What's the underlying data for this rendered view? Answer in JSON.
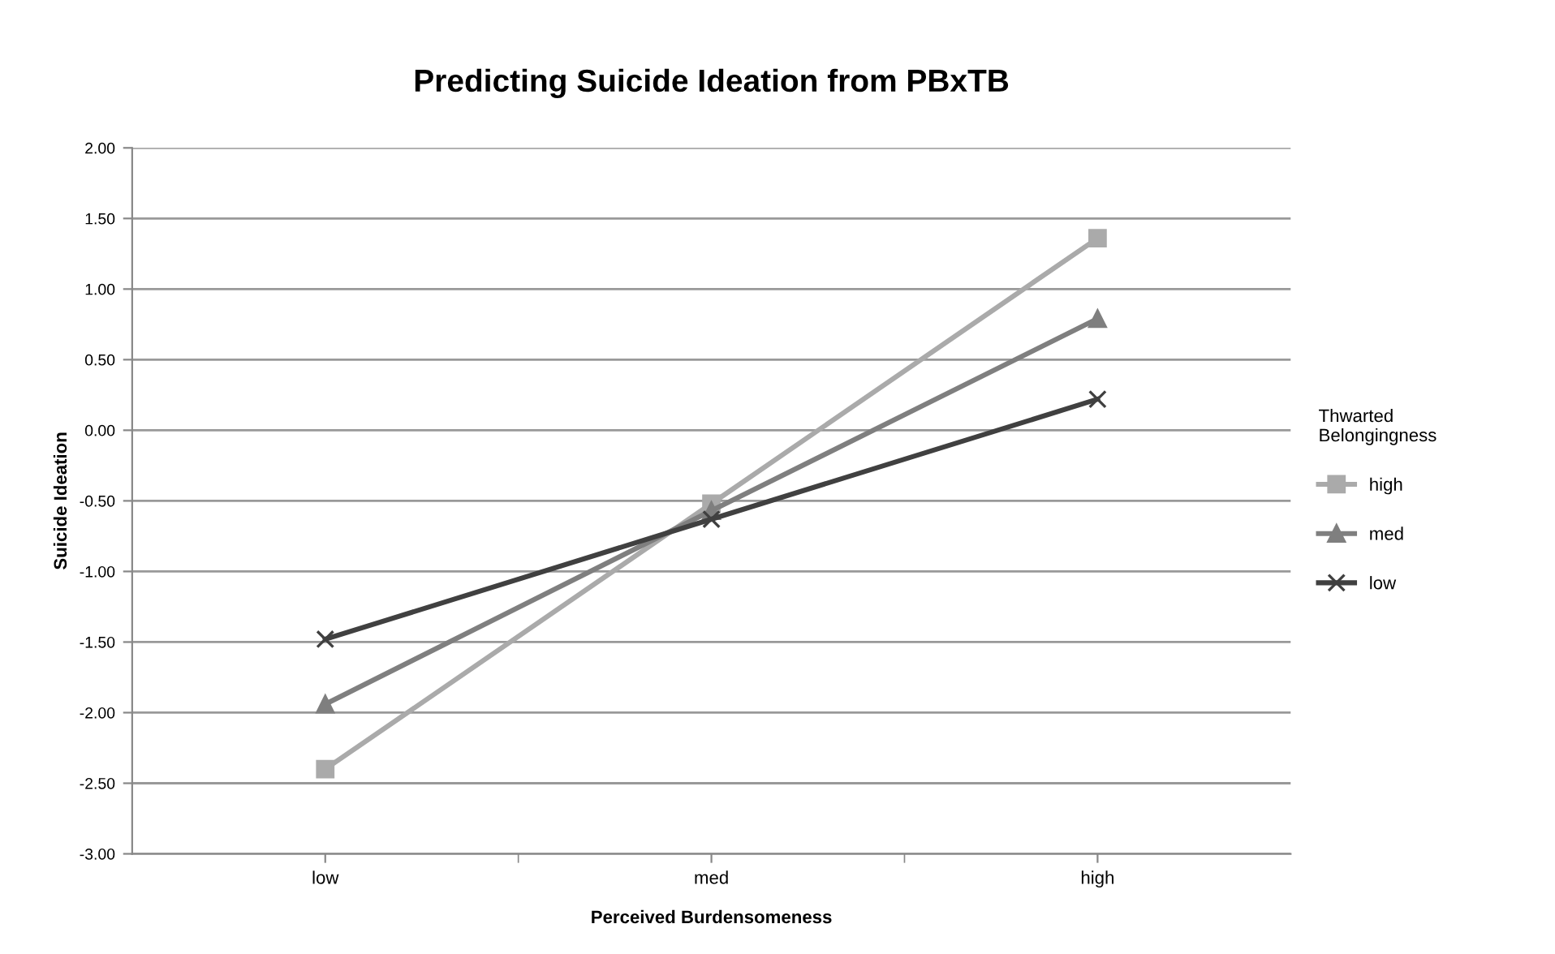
{
  "chart_data": {
    "type": "line",
    "title": "Predicting Suicide Ideation from PBxTB",
    "xlabel": "Perceived Burdensomeness",
    "ylabel": "Suicide Ideation",
    "legend_title": "Thwarted\nBelongingness",
    "categories": [
      "low",
      "med",
      "high"
    ],
    "series": [
      {
        "name": "high",
        "color": "#aaaaaa",
        "marker": "square",
        "values": [
          -2.4,
          -0.52,
          1.36
        ]
      },
      {
        "name": "med",
        "color": "#7f7f7f",
        "marker": "triangle",
        "values": [
          -1.94,
          -0.57,
          0.79
        ]
      },
      {
        "name": "low",
        "color": "#404040",
        "marker": "cross",
        "values": [
          -1.48,
          -0.63,
          0.22
        ]
      }
    ],
    "ylim": [
      -3,
      2
    ],
    "yticks": [
      {
        "value": -3,
        "label": "-3.00"
      },
      {
        "value": -2.5,
        "label": "-2.50"
      },
      {
        "value": -2,
        "label": "-2.00"
      },
      {
        "value": -1.5,
        "label": "-1.50"
      },
      {
        "value": -1,
        "label": "-1.00"
      },
      {
        "value": -0.5,
        "label": "-0.50"
      },
      {
        "value": 0,
        "label": "0.00"
      },
      {
        "value": 0.5,
        "label": "0.50"
      },
      {
        "value": 1,
        "label": "1.00"
      },
      {
        "value": 1.5,
        "label": "1.50"
      },
      {
        "value": 2,
        "label": "2.00"
      }
    ],
    "grid": "y",
    "legend": "right"
  }
}
